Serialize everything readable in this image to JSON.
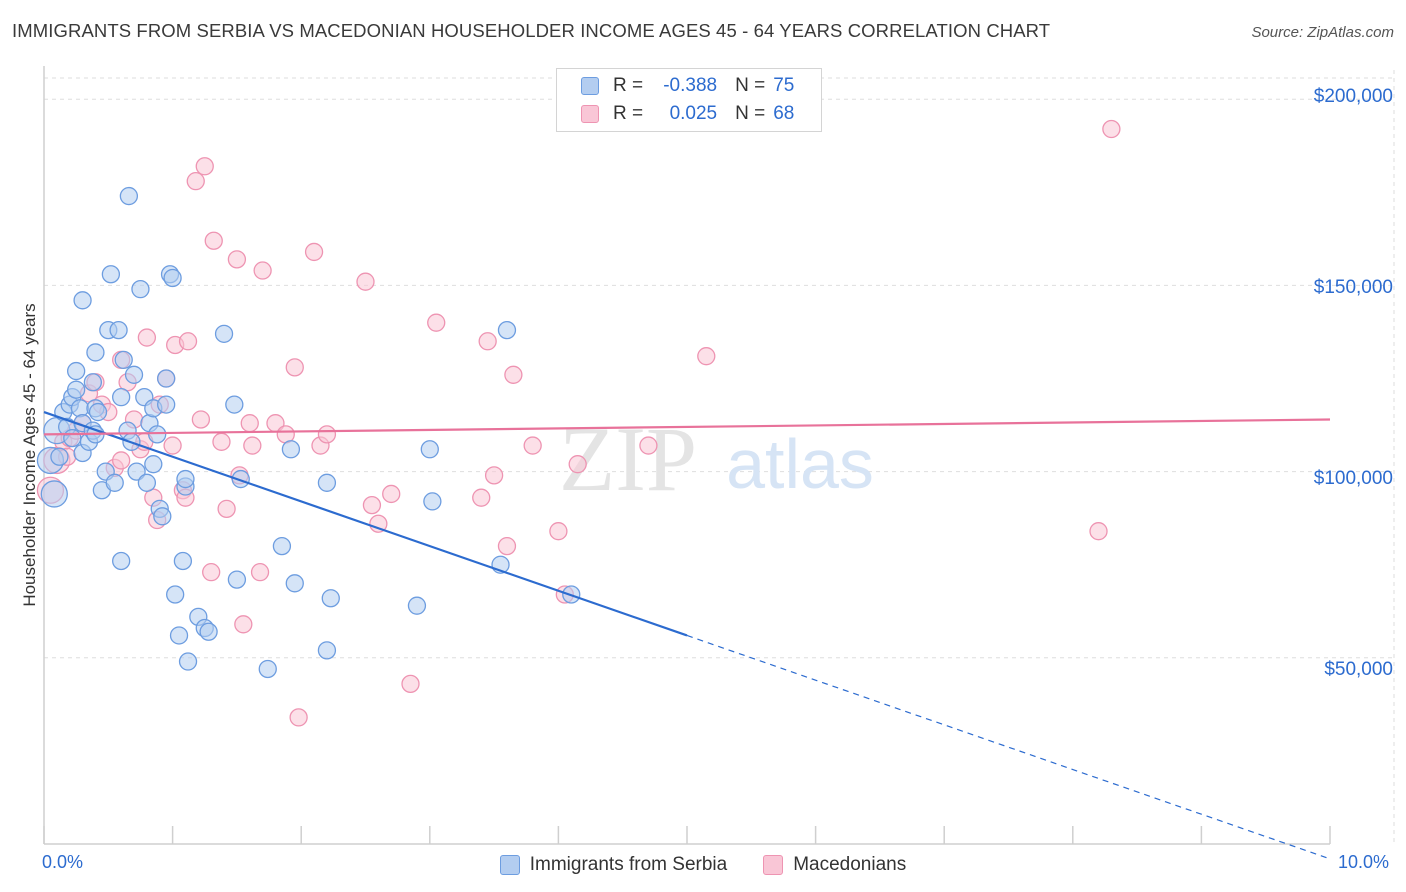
{
  "title": "IMMIGRANTS FROM SERBIA VS MACEDONIAN HOUSEHOLDER INCOME AGES 45 - 64 YEARS CORRELATION CHART",
  "source": "Source: ZipAtlas.com",
  "watermark": {
    "zip": "ZIP",
    "atlas": "atlas"
  },
  "legend_top": {
    "rows": [
      {
        "r_label": "R =",
        "r_value": "-0.388",
        "n_label": "N =",
        "n_value": "75"
      },
      {
        "r_label": "R =",
        "r_value": "0.025",
        "n_label": "N =",
        "n_value": "68"
      }
    ]
  },
  "colors": {
    "blue": "#2c6bcf",
    "blue_fill": "#b3cdf0",
    "blue_stroke": "#6d9de0",
    "pink": "#e8729a",
    "pink_fill": "#f9c6d6",
    "pink_stroke": "#ee94b2",
    "grid": "#dedede"
  },
  "chart_data": {
    "type": "scatter",
    "title": "IMMIGRANTS FROM SERBIA VS MACEDONIAN HOUSEHOLDER INCOME AGES 45 - 64 YEARS CORRELATION CHART",
    "xlabel": "",
    "ylabel": "Householder Income Ages 45 - 64 years",
    "xlim": [
      0,
      10
    ],
    "ylim": [
      0,
      210000
    ],
    "x_tick_labels": [
      "0.0%",
      "10.0%"
    ],
    "y_ticks": [
      50000,
      100000,
      150000,
      200000
    ],
    "y_tick_labels": [
      "$50,000",
      "$100,000",
      "$150,000",
      "$200,000"
    ],
    "legend": [
      "Immigrants from Serbia",
      "Macedonians"
    ],
    "series": [
      {
        "name": "Immigrants from Serbia",
        "color": "#2c6bcf",
        "trend": {
          "x0": 0.0,
          "y0": 116000,
          "x1": 5.0,
          "y1": 56000,
          "dashed_to_x": 10.0,
          "dashed_to_y": -4000
        },
        "points": [
          [
            0.05,
            103000
          ],
          [
            0.08,
            94000
          ],
          [
            0.1,
            111000
          ],
          [
            0.12,
            104000
          ],
          [
            0.15,
            116000
          ],
          [
            0.18,
            112000
          ],
          [
            0.2,
            118000
          ],
          [
            0.22,
            109000
          ],
          [
            0.22,
            120000
          ],
          [
            0.25,
            127000
          ],
          [
            0.25,
            122000
          ],
          [
            0.28,
            117000
          ],
          [
            0.3,
            113000
          ],
          [
            0.3,
            146000
          ],
          [
            0.3,
            105000
          ],
          [
            0.35,
            108000
          ],
          [
            0.38,
            111000
          ],
          [
            0.38,
            124000
          ],
          [
            0.4,
            117000
          ],
          [
            0.4,
            132000
          ],
          [
            0.4,
            110000
          ],
          [
            0.42,
            116000
          ],
          [
            0.45,
            95000
          ],
          [
            0.48,
            100000
          ],
          [
            0.5,
            138000
          ],
          [
            0.52,
            153000
          ],
          [
            0.55,
            97000
          ],
          [
            0.58,
            138000
          ],
          [
            0.6,
            120000
          ],
          [
            0.6,
            76000
          ],
          [
            0.62,
            130000
          ],
          [
            0.65,
            111000
          ],
          [
            0.66,
            174000
          ],
          [
            0.68,
            108000
          ],
          [
            0.7,
            126000
          ],
          [
            0.72,
            100000
          ],
          [
            0.75,
            149000
          ],
          [
            0.78,
            120000
          ],
          [
            0.8,
            97000
          ],
          [
            0.82,
            113000
          ],
          [
            0.85,
            102000
          ],
          [
            0.85,
            117000
          ],
          [
            0.88,
            110000
          ],
          [
            0.9,
            90000
          ],
          [
            0.92,
            88000
          ],
          [
            0.95,
            118000
          ],
          [
            0.95,
            125000
          ],
          [
            0.98,
            153000
          ],
          [
            1.0,
            152000
          ],
          [
            1.02,
            67000
          ],
          [
            1.05,
            56000
          ],
          [
            1.08,
            76000
          ],
          [
            1.1,
            96000
          ],
          [
            1.1,
            98000
          ],
          [
            1.12,
            49000
          ],
          [
            1.2,
            61000
          ],
          [
            1.25,
            58000
          ],
          [
            1.28,
            57000
          ],
          [
            1.4,
            137000
          ],
          [
            1.48,
            118000
          ],
          [
            1.5,
            71000
          ],
          [
            1.53,
            98000
          ],
          [
            1.74,
            47000
          ],
          [
            1.85,
            80000
          ],
          [
            1.92,
            106000
          ],
          [
            1.95,
            70000
          ],
          [
            2.2,
            97000
          ],
          [
            2.2,
            52000
          ],
          [
            2.23,
            66000
          ],
          [
            2.9,
            64000
          ],
          [
            3.0,
            106000
          ],
          [
            3.02,
            92000
          ],
          [
            3.6,
            138000
          ],
          [
            3.55,
            75000
          ],
          [
            4.1,
            67000
          ]
        ]
      },
      {
        "name": "Macedonians",
        "color": "#e8729a",
        "trend": {
          "x0": 0.0,
          "y0": 110000,
          "x1": 10.0,
          "y1": 114000
        },
        "points": [
          [
            0.05,
            95000
          ],
          [
            0.1,
            103000
          ],
          [
            0.15,
            108000
          ],
          [
            0.18,
            104000
          ],
          [
            0.2,
            109000
          ],
          [
            0.25,
            111000
          ],
          [
            0.3,
            113000
          ],
          [
            0.35,
            121000
          ],
          [
            0.4,
            124000
          ],
          [
            0.45,
            118000
          ],
          [
            0.5,
            116000
          ],
          [
            0.55,
            101000
          ],
          [
            0.6,
            103000
          ],
          [
            0.6,
            130000
          ],
          [
            0.65,
            124000
          ],
          [
            0.7,
            114000
          ],
          [
            0.75,
            106000
          ],
          [
            0.78,
            108000
          ],
          [
            0.8,
            136000
          ],
          [
            0.85,
            93000
          ],
          [
            0.88,
            87000
          ],
          [
            0.9,
            118000
          ],
          [
            0.95,
            125000
          ],
          [
            1.0,
            107000
          ],
          [
            1.02,
            134000
          ],
          [
            1.08,
            95000
          ],
          [
            1.1,
            93000
          ],
          [
            1.12,
            135000
          ],
          [
            1.18,
            178000
          ],
          [
            1.22,
            114000
          ],
          [
            1.25,
            182000
          ],
          [
            1.3,
            73000
          ],
          [
            1.32,
            162000
          ],
          [
            1.38,
            108000
          ],
          [
            1.42,
            90000
          ],
          [
            1.5,
            157000
          ],
          [
            1.52,
            99000
          ],
          [
            1.55,
            59000
          ],
          [
            1.6,
            113000
          ],
          [
            1.62,
            107000
          ],
          [
            1.68,
            73000
          ],
          [
            1.7,
            154000
          ],
          [
            1.8,
            113000
          ],
          [
            1.88,
            110000
          ],
          [
            1.95,
            128000
          ],
          [
            1.98,
            34000
          ],
          [
            2.1,
            159000
          ],
          [
            2.15,
            107000
          ],
          [
            2.2,
            110000
          ],
          [
            2.5,
            151000
          ],
          [
            2.55,
            91000
          ],
          [
            2.6,
            86000
          ],
          [
            2.7,
            94000
          ],
          [
            2.85,
            43000
          ],
          [
            3.05,
            140000
          ],
          [
            3.4,
            93000
          ],
          [
            3.45,
            135000
          ],
          [
            3.5,
            99000
          ],
          [
            3.6,
            80000
          ],
          [
            3.65,
            126000
          ],
          [
            3.8,
            107000
          ],
          [
            4.0,
            84000
          ],
          [
            4.15,
            102000
          ],
          [
            4.05,
            67000
          ],
          [
            4.7,
            107000
          ],
          [
            5.15,
            131000
          ],
          [
            8.2,
            84000
          ],
          [
            8.3,
            192000
          ]
        ]
      }
    ]
  },
  "bottom_legend": [
    {
      "label": "Immigrants from Serbia"
    },
    {
      "label": "Macedonians"
    }
  ]
}
